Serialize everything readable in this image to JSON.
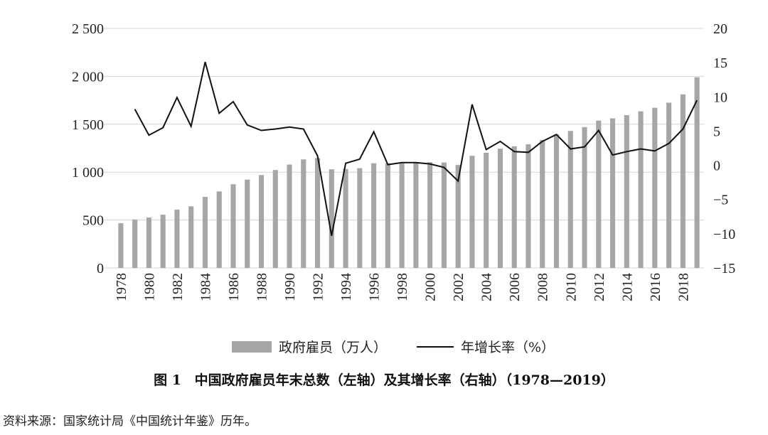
{
  "chart_data": {
    "type": "bar+line",
    "years": [
      "1978",
      "1979",
      "1980",
      "1981",
      "1982",
      "1983",
      "1984",
      "1985",
      "1986",
      "1987",
      "1988",
      "1989",
      "1990",
      "1991",
      "1992",
      "1993",
      "1994",
      "1995",
      "1996",
      "1997",
      "1998",
      "1999",
      "2000",
      "2001",
      "2002",
      "2003",
      "2004",
      "2005",
      "2006",
      "2007",
      "2008",
      "2009",
      "2010",
      "2011",
      "2012",
      "2013",
      "2014",
      "2015",
      "2016",
      "2017",
      "2018",
      "2019"
    ],
    "x_tick_labels": [
      "1978",
      "1980",
      "1982",
      "1984",
      "1986",
      "1988",
      "1990",
      "1992",
      "1994",
      "1996",
      "1998",
      "2000",
      "2002",
      "2004",
      "2006",
      "2008",
      "2010",
      "2012",
      "2014",
      "2016",
      "2018"
    ],
    "left_axis": {
      "ylim": [
        0,
        2500
      ],
      "ticks": [
        "0",
        "500",
        "1 000",
        "1 500",
        "2 000",
        "2 500"
      ],
      "tick_values": [
        0,
        500,
        1000,
        1500,
        2000,
        2500
      ]
    },
    "right_axis": {
      "ylim": [
        -15,
        20
      ],
      "ticks": [
        "−15",
        "−10",
        "−5",
        "0",
        "5",
        "10",
        "15",
        "20"
      ],
      "tick_values": [
        -15,
        -10,
        -5,
        0,
        5,
        10,
        15,
        20
      ]
    },
    "series": [
      {
        "name": "政府雇员（万人）",
        "type": "bar",
        "axis": "left",
        "color": "#a6a6a6",
        "values": [
          467,
          506,
          527,
          556,
          609,
          643,
          742,
          799,
          874,
          922,
          970,
          1022,
          1079,
          1133,
          1148,
          1030,
          1033,
          1042,
          1093,
          1093,
          1097,
          1102,
          1104,
          1101,
          1075,
          1171,
          1202,
          1245,
          1270,
          1291,
          1336,
          1394,
          1430,
          1470,
          1538,
          1562,
          1595,
          1635,
          1672,
          1725,
          1812,
          1991
        ]
      },
      {
        "name": "年增长率（%）",
        "type": "line",
        "axis": "right",
        "color": "#111111",
        "values": [
          null,
          8.2,
          4.4,
          5.5,
          9.9,
          5.7,
          15.1,
          7.6,
          9.3,
          5.9,
          5.1,
          5.3,
          5.6,
          5.3,
          1.4,
          -10.3,
          0.3,
          0.9,
          4.9,
          0.1,
          0.4,
          0.4,
          0.2,
          -0.3,
          -2.3,
          8.9,
          2.3,
          3.5,
          2.0,
          1.9,
          3.5,
          4.5,
          2.4,
          2.7,
          5.1,
          1.5,
          2.0,
          2.4,
          2.1,
          3.2,
          5.3,
          9.5
        ]
      }
    ],
    "grid": true,
    "legend": "bottom"
  },
  "caption": {
    "label": "图 1",
    "title": "中国政府雇员年末总数（左轴）及其增长率（右轴）（1978—2019）"
  },
  "source_note": "资料来源：国家统计局《中国统计年鉴》历年。"
}
